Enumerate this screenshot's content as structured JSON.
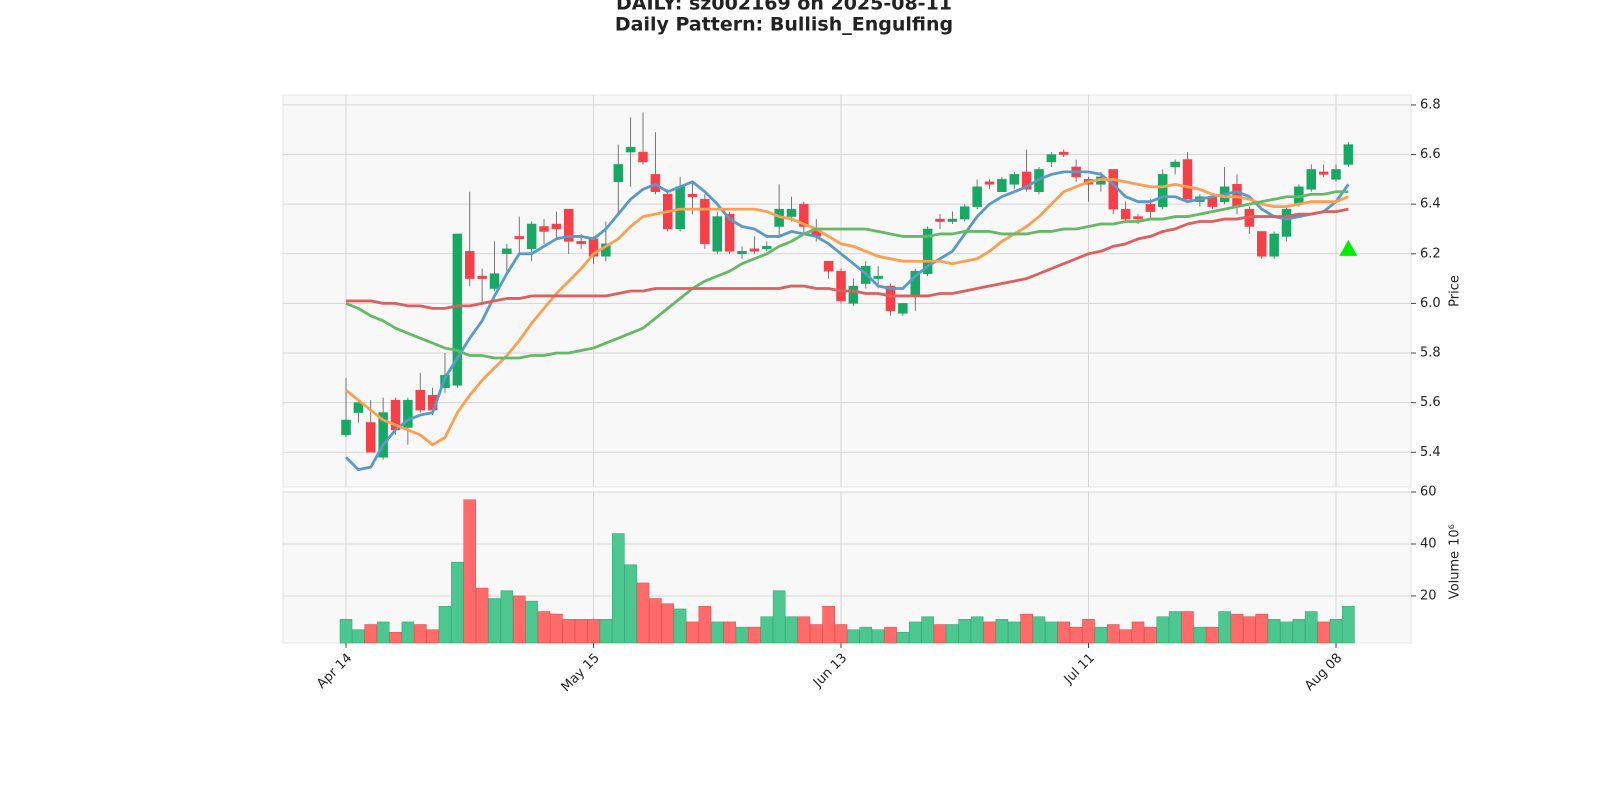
{
  "chart_data": [
    {
      "type": "candlestick",
      "title": "DAILY: sz002169 on 2025-08-11",
      "subtitle": "Daily Pattern: Bullish_Engulfing",
      "ylabel": "Price",
      "ylim": [
        5.26,
        6.84
      ],
      "yticks": [
        5.4,
        5.6,
        5.8,
        {
          "value": 6,
          "label": "6.0"
        },
        6.2,
        6.4,
        6.6,
        6.8
      ],
      "grid": true,
      "up_color": "#17a863",
      "down_color": "#f5404a",
      "open": [
        5.47,
        5.56,
        5.52,
        5.38,
        5.61,
        5.5,
        5.65,
        5.63,
        5.66,
        5.67,
        6.21,
        6.11,
        6.06,
        6.2,
        6.27,
        6.22,
        6.31,
        6.32,
        6.38,
        6.25,
        6.26,
        6.19,
        6.49,
        6.61,
        6.61,
        6.52,
        6.44,
        6.3,
        6.44,
        6.42,
        6.21,
        6.36,
        6.2,
        6.22,
        6.22,
        6.31,
        6.35,
        6.4,
        6.3,
        6.17,
        6.13,
        6.0,
        6.08,
        6.1,
        6.07,
        5.96,
        6.03,
        6.12,
        6.34,
        6.33,
        6.34,
        6.39,
        6.49,
        6.45,
        6.48,
        6.53,
        6.45,
        6.57,
        6.61,
        6.55,
        6.5,
        6.48,
        6.54,
        6.38,
        6.35,
        6.4,
        6.39,
        6.55,
        6.58,
        6.41,
        6.43,
        6.41,
        6.48,
        6.38,
        6.29,
        6.19,
        6.27,
        6.4,
        6.46,
        6.53,
        6.5,
        6.56
      ],
      "high": [
        5.7,
        5.61,
        5.61,
        5.62,
        5.62,
        5.62,
        5.72,
        5.66,
        5.8,
        6.28,
        6.45,
        6.14,
        6.25,
        6.24,
        6.35,
        6.33,
        6.34,
        6.37,
        6.38,
        6.28,
        6.27,
        6.33,
        6.64,
        6.75,
        6.77,
        6.69,
        6.46,
        6.51,
        6.49,
        6.44,
        6.37,
        6.37,
        6.23,
        6.27,
        6.25,
        6.48,
        6.43,
        6.41,
        6.34,
        6.17,
        6.14,
        6.1,
        6.17,
        6.15,
        6.08,
        6.0,
        6.14,
        6.31,
        6.36,
        6.37,
        6.4,
        6.5,
        6.5,
        6.51,
        6.53,
        6.62,
        6.55,
        6.61,
        6.62,
        6.58,
        6.51,
        6.53,
        6.54,
        6.41,
        6.36,
        6.42,
        6.54,
        6.58,
        6.61,
        6.44,
        6.44,
        6.55,
        6.52,
        6.39,
        6.29,
        6.29,
        6.39,
        6.48,
        6.56,
        6.56,
        6.56,
        6.65
      ],
      "low": [
        5.46,
        5.52,
        5.4,
        5.37,
        5.47,
        5.43,
        5.56,
        5.55,
        5.64,
        5.66,
        6.07,
        6.0,
        6.05,
        6.12,
        6.2,
        6.17,
        6.24,
        6.26,
        6.2,
        6.22,
        6.16,
        6.17,
        6.36,
        6.47,
        6.56,
        6.44,
        6.29,
        6.29,
        6.36,
        6.22,
        6.2,
        6.2,
        6.18,
        6.2,
        6.21,
        6.27,
        6.33,
        6.28,
        6.25,
        6.1,
        6.0,
        5.99,
        6.06,
        6.06,
        5.95,
        5.95,
        5.97,
        6.11,
        6.3,
        6.32,
        6.33,
        6.38,
        6.46,
        6.45,
        6.46,
        6.45,
        6.44,
        6.55,
        6.59,
        6.49,
        6.41,
        6.45,
        6.36,
        6.33,
        6.32,
        6.34,
        6.38,
        6.52,
        6.42,
        6.39,
        6.38,
        6.4,
        6.36,
        6.28,
        6.18,
        6.18,
        6.25,
        6.39,
        6.45,
        6.51,
        6.49,
        6.55
      ],
      "close": [
        5.53,
        5.6,
        5.4,
        5.56,
        5.49,
        5.61,
        5.57,
        5.57,
        5.71,
        6.28,
        6.1,
        6.1,
        6.12,
        6.22,
        6.26,
        6.32,
        6.29,
        6.3,
        6.25,
        6.24,
        6.19,
        6.24,
        6.56,
        6.63,
        6.57,
        6.45,
        6.3,
        6.47,
        6.43,
        6.24,
        6.35,
        6.21,
        6.21,
        6.21,
        6.23,
        6.38,
        6.38,
        6.31,
        6.27,
        6.13,
        6.01,
        6.07,
        6.15,
        6.11,
        5.97,
        6.0,
        6.13,
        6.3,
        6.33,
        6.34,
        6.39,
        6.47,
        6.48,
        6.5,
        6.52,
        6.46,
        6.54,
        6.6,
        6.6,
        6.51,
        6.48,
        6.51,
        6.38,
        6.34,
        6.34,
        6.37,
        6.52,
        6.57,
        6.42,
        6.43,
        6.39,
        6.47,
        6.39,
        6.31,
        6.19,
        6.28,
        6.38,
        6.47,
        6.54,
        6.52,
        6.54,
        6.64
      ],
      "series": [
        {
          "color": "#5a9ac9",
          "values": [
            5.38,
            5.33,
            5.34,
            5.43,
            5.49,
            5.53,
            5.55,
            5.56,
            5.7,
            5.78,
            5.86,
            5.93,
            6.03,
            6.12,
            6.2,
            6.2,
            6.23,
            6.26,
            6.27,
            6.27,
            6.26,
            6.3,
            6.36,
            6.42,
            6.46,
            6.48,
            6.45,
            6.47,
            6.49,
            6.45,
            6.4,
            6.34,
            6.31,
            6.3,
            6.27,
            6.27,
            6.29,
            6.28,
            6.27,
            6.24,
            6.2,
            6.16,
            6.12,
            6.07,
            6.06,
            6.06,
            6.11,
            6.15,
            6.18,
            6.21,
            6.28,
            6.35,
            6.4,
            6.43,
            6.45,
            6.47,
            6.5,
            6.52,
            6.53,
            6.53,
            6.53,
            6.52,
            6.48,
            6.43,
            6.41,
            6.41,
            6.43,
            6.43,
            6.41,
            6.42,
            6.43,
            6.44,
            6.45,
            6.43,
            6.38,
            6.35,
            6.34,
            6.35,
            6.36,
            6.37,
            6.41,
            6.48
          ]
        },
        {
          "color": "#fba050",
          "values": [
            5.65,
            5.61,
            5.57,
            5.53,
            5.51,
            5.49,
            5.47,
            5.43,
            5.46,
            5.56,
            5.63,
            5.69,
            5.74,
            5.79,
            5.85,
            5.92,
            5.98,
            6.04,
            6.09,
            6.14,
            6.2,
            6.23,
            6.26,
            6.31,
            6.35,
            6.36,
            6.37,
            6.38,
            6.38,
            6.38,
            6.38,
            6.38,
            6.38,
            6.38,
            6.37,
            6.35,
            6.34,
            6.32,
            6.3,
            6.27,
            6.24,
            6.23,
            6.21,
            6.19,
            6.18,
            6.17,
            6.17,
            6.17,
            6.17,
            6.16,
            6.17,
            6.18,
            6.21,
            6.25,
            6.28,
            6.31,
            6.35,
            6.4,
            6.45,
            6.47,
            6.49,
            6.5,
            6.5,
            6.49,
            6.48,
            6.47,
            6.47,
            6.48,
            6.47,
            6.46,
            6.44,
            6.43,
            6.43,
            6.42,
            6.4,
            6.39,
            6.39,
            6.4,
            6.41,
            6.41,
            6.41,
            6.43
          ]
        },
        {
          "color": "#66b866",
          "values": [
            6.0,
            5.98,
            5.95,
            5.93,
            5.9,
            5.88,
            5.86,
            5.84,
            5.82,
            5.81,
            5.79,
            5.79,
            5.78,
            5.78,
            5.78,
            5.79,
            5.79,
            5.8,
            5.8,
            5.81,
            5.82,
            5.84,
            5.86,
            5.88,
            5.9,
            5.94,
            5.98,
            6.02,
            6.06,
            6.09,
            6.11,
            6.13,
            6.16,
            6.18,
            6.2,
            6.23,
            6.25,
            6.28,
            6.3,
            6.3,
            6.3,
            6.3,
            6.3,
            6.29,
            6.28,
            6.27,
            6.27,
            6.27,
            6.28,
            6.28,
            6.29,
            6.29,
            6.29,
            6.28,
            6.28,
            6.28,
            6.29,
            6.29,
            6.3,
            6.3,
            6.31,
            6.32,
            6.32,
            6.33,
            6.33,
            6.34,
            6.34,
            6.35,
            6.35,
            6.36,
            6.37,
            6.38,
            6.39,
            6.4,
            6.41,
            6.42,
            6.43,
            6.43,
            6.44,
            6.44,
            6.45,
            6.45
          ]
        },
        {
          "color": "#dd6060",
          "values": [
            6.01,
            6.01,
            6.01,
            6.0,
            6.0,
            5.99,
            5.99,
            5.98,
            5.98,
            5.99,
            5.99,
            6.0,
            6.01,
            6.02,
            6.02,
            6.03,
            6.03,
            6.03,
            6.03,
            6.03,
            6.03,
            6.03,
            6.04,
            6.05,
            6.05,
            6.06,
            6.06,
            6.06,
            6.06,
            6.06,
            6.06,
            6.06,
            6.06,
            6.06,
            6.06,
            6.06,
            6.07,
            6.07,
            6.06,
            6.06,
            6.05,
            6.05,
            6.04,
            6.04,
            6.03,
            6.03,
            6.03,
            6.03,
            6.04,
            6.04,
            6.05,
            6.06,
            6.07,
            6.08,
            6.09,
            6.1,
            6.12,
            6.14,
            6.16,
            6.18,
            6.2,
            6.21,
            6.23,
            6.24,
            6.26,
            6.27,
            6.29,
            6.3,
            6.32,
            6.33,
            6.33,
            6.34,
            6.34,
            6.35,
            6.35,
            6.35,
            6.35,
            6.36,
            6.36,
            6.37,
            6.37,
            6.38
          ]
        }
      ],
      "signal": {
        "color": "#00ee00",
        "values": [
          null,
          null,
          null,
          null,
          null,
          null,
          null,
          null,
          null,
          null,
          null,
          null,
          null,
          null,
          null,
          null,
          null,
          null,
          null,
          null,
          null,
          null,
          null,
          null,
          null,
          null,
          null,
          null,
          null,
          null,
          null,
          null,
          null,
          null,
          null,
          null,
          null,
          null,
          null,
          null,
          null,
          null,
          null,
          null,
          null,
          null,
          null,
          null,
          null,
          null,
          null,
          null,
          null,
          null,
          null,
          null,
          null,
          null,
          null,
          null,
          null,
          null,
          null,
          null,
          null,
          null,
          null,
          null,
          null,
          null,
          null,
          null,
          null,
          null,
          null,
          null,
          null,
          null,
          null,
          null,
          null,
          6.22
        ]
      }
    },
    {
      "type": "volume",
      "ylabel": "Volume",
      "offset_label": "10⁶",
      "ylim": [
        1.9,
        60
      ],
      "yticks": [
        20,
        40,
        60
      ],
      "grid": true,
      "up_color": "#4cc790",
      "down_color": "#ff6b6b",
      "categories": [
        "Apr 14",
        null,
        null,
        null,
        null,
        null,
        null,
        null,
        null,
        null,
        null,
        null,
        null,
        null,
        null,
        null,
        null,
        null,
        null,
        null,
        "May 15",
        null,
        null,
        null,
        null,
        null,
        null,
        null,
        null,
        null,
        null,
        null,
        null,
        null,
        null,
        null,
        null,
        null,
        null,
        null,
        "Jun 13",
        null,
        null,
        null,
        null,
        null,
        null,
        null,
        null,
        null,
        null,
        null,
        null,
        null,
        null,
        null,
        null,
        null,
        null,
        null,
        "Jul 11",
        null,
        null,
        null,
        null,
        null,
        null,
        null,
        null,
        null,
        null,
        null,
        null,
        null,
        null,
        null,
        null,
        null,
        null,
        null,
        "Aug 08",
        null
      ],
      "values": [
        11,
        7,
        9,
        10,
        6,
        10,
        9,
        7,
        16,
        33,
        57,
        23,
        19,
        22,
        20,
        18,
        14,
        13,
        11,
        11,
        11,
        11,
        44,
        32,
        25,
        19,
        17,
        15,
        10,
        16,
        10,
        10,
        8,
        8,
        12,
        22,
        12,
        12,
        9,
        16,
        9,
        7,
        8,
        7,
        8,
        6,
        10,
        12,
        9,
        9,
        11,
        12,
        10,
        11,
        10,
        13,
        12,
        10,
        10,
        8,
        11,
        8,
        9,
        7,
        10,
        8,
        12,
        14,
        14,
        8,
        8,
        14,
        13,
        12,
        13,
        11,
        10,
        11,
        14,
        10,
        11,
        16
      ]
    }
  ]
}
